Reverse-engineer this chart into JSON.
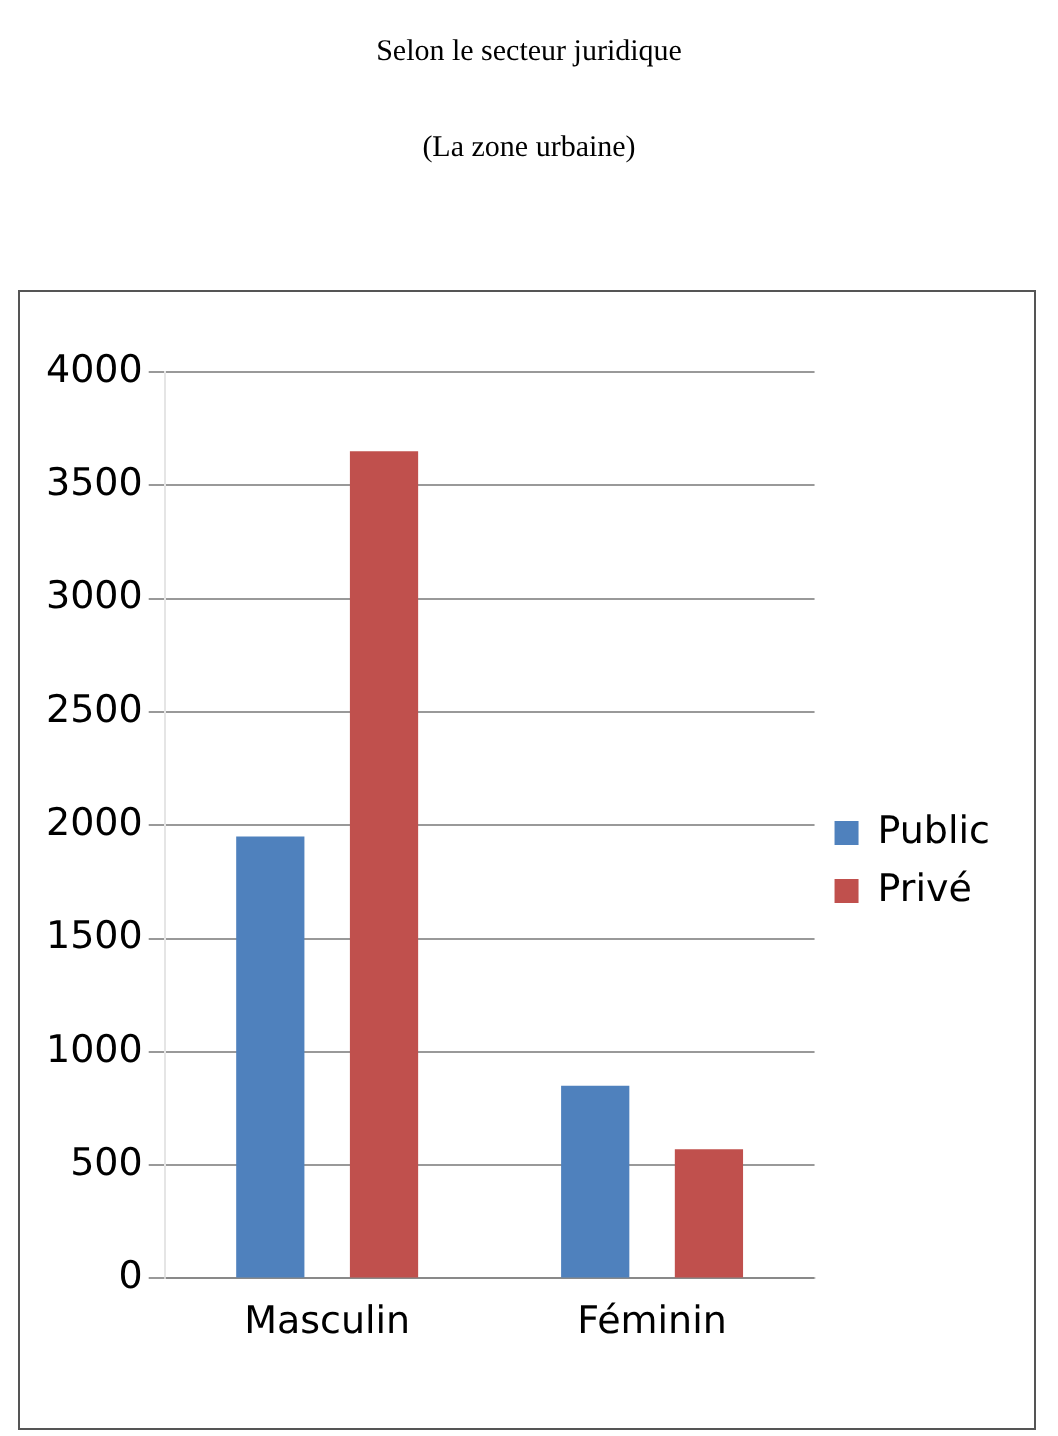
{
  "chart_data": {
    "type": "bar",
    "title": "Selon le secteur juridique",
    "subtitle": "(La zone urbaine)",
    "categories": [
      "Masculin",
      "Féminin"
    ],
    "series": [
      {
        "name": "Public",
        "color": "#4f81bd",
        "values": [
          1950,
          850
        ]
      },
      {
        "name": "Privé",
        "color": "#c0504d",
        "values": [
          3650,
          570
        ]
      }
    ],
    "ylim": [
      0,
      4000
    ],
    "yticks": [
      0,
      500,
      1000,
      1500,
      2000,
      2500,
      3000,
      3500,
      4000
    ],
    "grid": "y",
    "legend": "right"
  }
}
